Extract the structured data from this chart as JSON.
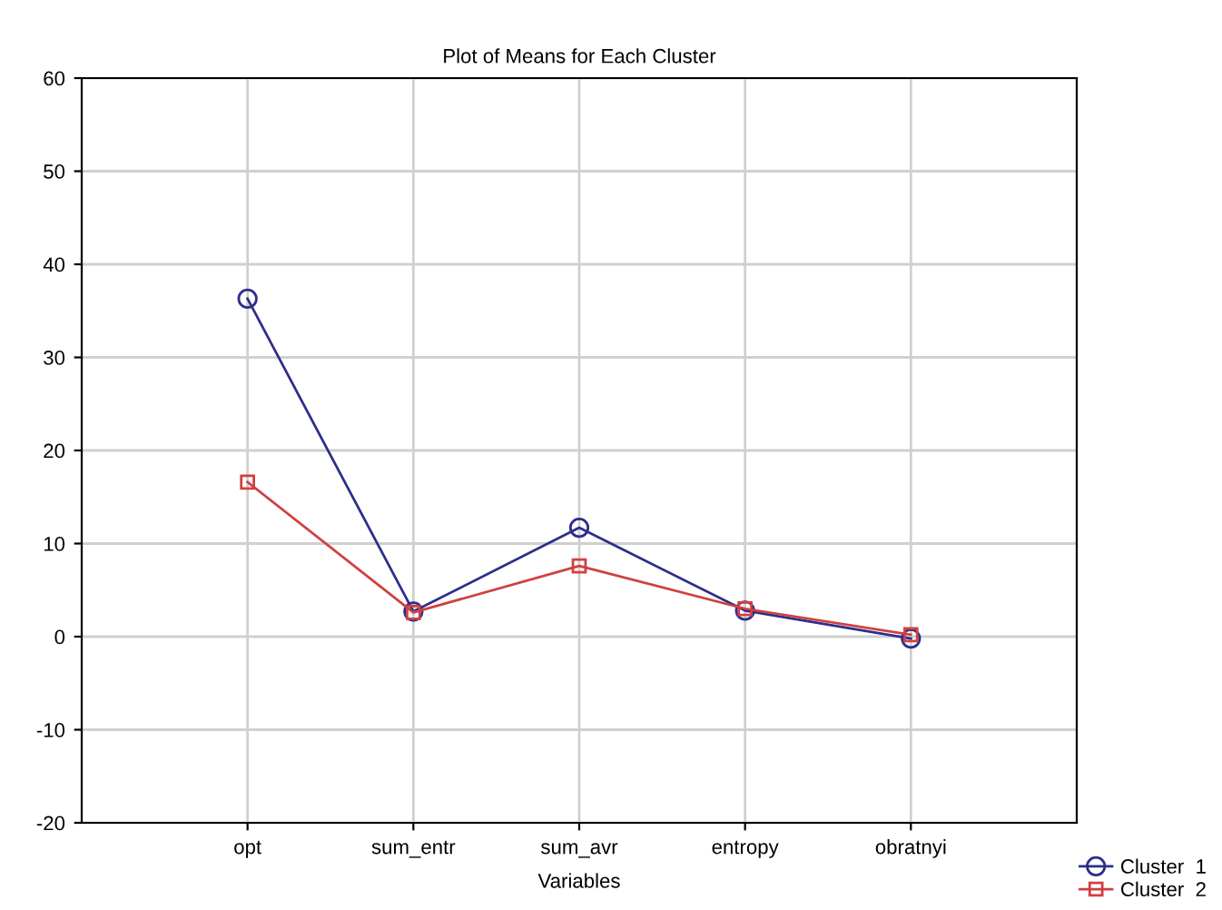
{
  "chart_data": {
    "type": "line",
    "title": "Plot of Means for Each Cluster",
    "xlabel": "Variables",
    "categories": [
      "opt",
      "sum_entr",
      "sum_avr",
      "entropy",
      "obratnyi"
    ],
    "series": [
      {
        "name": "Cluster  1",
        "color": "#2e2e8c",
        "values": [
          36.3,
          2.7,
          11.7,
          2.8,
          -0.2
        ],
        "marker": "circle"
      },
      {
        "name": "Cluster  2",
        "color": "#d04040",
        "values": [
          16.6,
          2.6,
          7.6,
          3.0,
          0.2
        ],
        "marker": "square"
      }
    ],
    "ylim": [
      -20,
      60
    ],
    "yticks": [
      -20,
      -10,
      0,
      10,
      20,
      30,
      40,
      50,
      60
    ],
    "grid": true,
    "legend": "bottom right",
    "line_style": "solid"
  }
}
